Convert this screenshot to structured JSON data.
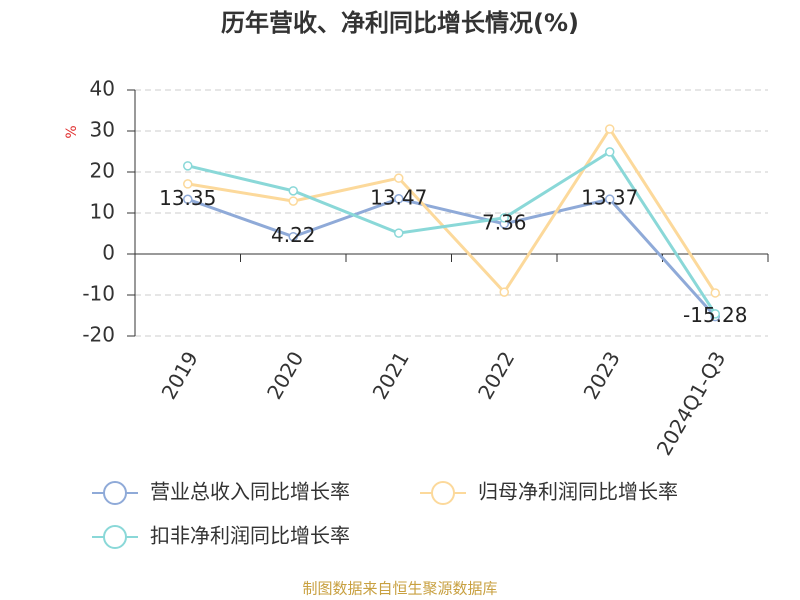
{
  "chart_data": {
    "type": "line",
    "title": "历年营收、净利同比增长情况(%)",
    "y_label": "%",
    "categories": [
      "2019",
      "2020",
      "2021",
      "2022",
      "2023",
      "2024Q1-Q3"
    ],
    "series": [
      {
        "name": "营业总收入同比增长率",
        "color": "#8faad8",
        "values": [
          13.35,
          4.22,
          13.47,
          7.36,
          13.37,
          -15.28
        ],
        "show_labels": true
      },
      {
        "name": "归母净利润同比增长率",
        "color": "#fcd99b",
        "values": [
          17.1,
          12.9,
          18.5,
          -9.3,
          30.5,
          -9.5
        ]
      },
      {
        "name": "扣非净利润同比增长率",
        "color": "#8ad8d8",
        "values": [
          21.5,
          15.4,
          5.1,
          8.8,
          24.9,
          -14.6
        ]
      }
    ],
    "ylim": [
      -20,
      40
    ],
    "yticks": [
      -20,
      -10,
      0,
      10,
      20,
      30,
      40
    ],
    "grid": true,
    "source": "制图数据来自恒生聚源数据库"
  }
}
